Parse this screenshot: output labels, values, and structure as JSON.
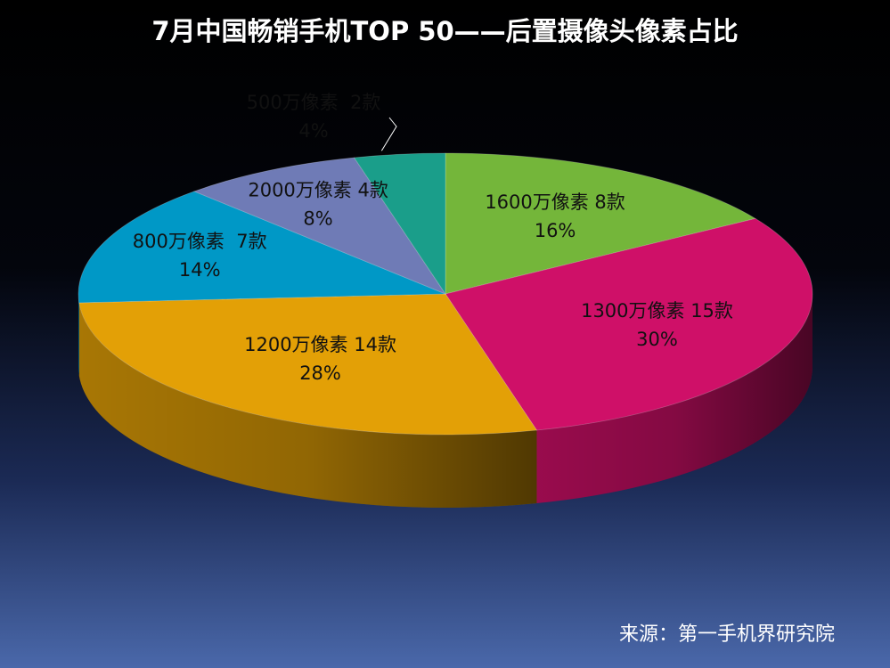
{
  "chart_data": {
    "type": "pie",
    "title": "7月中国畅销手机TOP 50——后置摄像头像素占比",
    "slices": [
      {
        "label": "1600万像素 8款",
        "pct_label": "16%",
        "value": 8,
        "color": "#74b63a"
      },
      {
        "label": "1300万像素 15款",
        "pct_label": "30%",
        "value": 15,
        "color": "#cf1068"
      },
      {
        "label": "1200万像素 14款",
        "pct_label": "28%",
        "value": 14,
        "color": "#e3a006"
      },
      {
        "label": "800万像素  7款",
        "pct_label": "14%",
        "value": 7,
        "color": "#0098c6"
      },
      {
        "label": "2000万像素 4款",
        "pct_label": "8%",
        "value": 4,
        "color": "#6f7bb6"
      },
      {
        "label": "500万像素  2款",
        "pct_label": "4%",
        "value": 2,
        "color": "#1a9e8a"
      }
    ],
    "source": "来源：第一手机界研究院"
  }
}
